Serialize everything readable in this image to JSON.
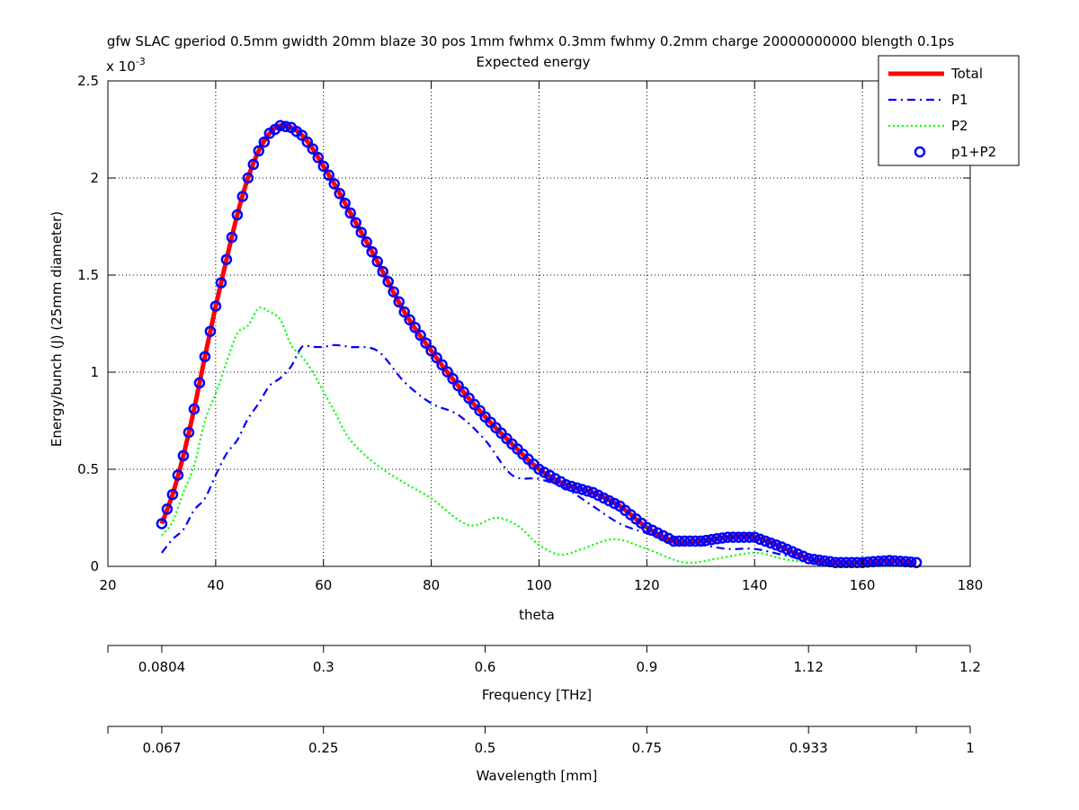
{
  "chart_data": {
    "type": "line",
    "title": "gfw SLAC gperiod 0.5mm gwidth 20mm blaze 30 pos 1mm fwhmx 0.3mm fwhmy 0.2mm charge 20000000000 blength 0.1ps",
    "subtitle": "Expected energy",
    "xlabel": "theta",
    "ylabel": "Energy/bunch (J) (25mm diameter)",
    "y_multiplier_base": "x 10",
    "y_multiplier_exp": "-3",
    "xlim": [
      20,
      180
    ],
    "ylim": [
      0,
      0.0025
    ],
    "x_ticks": [
      20,
      40,
      60,
      80,
      100,
      120,
      140,
      160,
      180
    ],
    "y_ticks": [
      0,
      0.5,
      1,
      1.5,
      2,
      2.5
    ],
    "grid": true,
    "legend_position": "top-right",
    "legend": [
      {
        "label": "Total",
        "color": "#ff0000",
        "style": "solid"
      },
      {
        "label": "P1",
        "color": "#0000ff",
        "style": "dashdot"
      },
      {
        "label": "P2",
        "color": "#00ff00",
        "style": "dotted"
      },
      {
        "label": "p1+P2",
        "color": "#0000ff",
        "style": "circles"
      }
    ],
    "series": [
      {
        "name": "Total",
        "color": "#ff0000",
        "x": [
          30,
          32,
          34,
          36,
          38,
          40,
          42,
          44,
          46,
          48,
          50,
          52,
          54,
          56,
          58,
          60,
          62,
          65,
          70,
          75,
          80,
          85,
          90,
          95,
          100,
          105,
          110,
          115,
          120,
          125,
          130,
          135,
          140,
          145,
          150,
          155,
          160,
          165,
          170
        ],
        "y": [
          0.00022,
          0.00037,
          0.00057,
          0.00081,
          0.00108,
          0.00134,
          0.00158,
          0.00181,
          0.002,
          0.00214,
          0.00223,
          0.00227,
          0.00226,
          0.00222,
          0.00215,
          0.00206,
          0.00197,
          0.00182,
          0.00157,
          0.00131,
          0.00111,
          0.00093,
          0.00077,
          0.00063,
          0.0005,
          0.00042,
          0.00038,
          0.00031,
          0.0002,
          0.00013,
          0.00013,
          0.00015,
          0.00015,
          0.0001,
          4e-05,
          2e-05,
          2e-05,
          3e-05,
          2e-05
        ]
      },
      {
        "name": "P1",
        "color": "#0000ff",
        "x": [
          30,
          32,
          34,
          36,
          38,
          40,
          42,
          44,
          46,
          48,
          50,
          52,
          54,
          56,
          58,
          60,
          62,
          65,
          70,
          75,
          80,
          85,
          90,
          95,
          100,
          105,
          110,
          115,
          120,
          125,
          130,
          135,
          140,
          145,
          150,
          155,
          160,
          165,
          170
        ],
        "y": [
          7e-05,
          0.00014,
          0.00019,
          0.00029,
          0.00035,
          0.00047,
          0.00058,
          0.00065,
          0.00076,
          0.00084,
          0.00093,
          0.00097,
          0.00103,
          0.00113,
          0.00113,
          0.00113,
          0.00114,
          0.00113,
          0.00111,
          0.00095,
          0.00084,
          0.00078,
          0.00065,
          0.00047,
          0.00045,
          0.0004,
          0.00031,
          0.00022,
          0.00017,
          0.00012,
          0.00011,
          9e-05,
          9e-05,
          6e-05,
          3e-05,
          1e-05,
          1e-05,
          1e-05,
          1e-05
        ]
      },
      {
        "name": "P2",
        "color": "#00ff00",
        "x": [
          30,
          32,
          34,
          36,
          38,
          40,
          42,
          44,
          46,
          48,
          50,
          52,
          54,
          56,
          58,
          60,
          62,
          65,
          70,
          75,
          80,
          85,
          88,
          92,
          96,
          100,
          104,
          108,
          114,
          120,
          127,
          133,
          140,
          145,
          150,
          155,
          160,
          165,
          170
        ],
        "y": [
          0.00016,
          0.00023,
          0.00038,
          0.00052,
          0.00075,
          0.00089,
          0.00105,
          0.0012,
          0.00124,
          0.00133,
          0.00131,
          0.00127,
          0.00114,
          0.00108,
          0.001,
          0.0009,
          0.0008,
          0.00065,
          0.00052,
          0.00043,
          0.00035,
          0.00024,
          0.00021,
          0.00025,
          0.00021,
          0.00011,
          6e-05,
          9e-05,
          0.00014,
          9e-05,
          2e-05,
          4e-05,
          7e-05,
          4e-05,
          2e-05,
          1e-05,
          1e-05,
          1e-05,
          1e-05
        ]
      }
    ],
    "marker_series": {
      "name": "p1+P2",
      "color": "#0000ff",
      "marker": "circle",
      "x_start": 30,
      "x_end": 170,
      "x_step": 1
    },
    "secondary_axes": [
      {
        "label": "Frequency [THz]",
        "ticks": [
          {
            "theta": 30,
            "label": "0.0804"
          },
          {
            "theta": 60,
            "label": "0.3"
          },
          {
            "theta": 90,
            "label": "0.6"
          },
          {
            "theta": 120,
            "label": "0.9"
          },
          {
            "theta": 150,
            "label": "1.12"
          },
          {
            "theta": 170,
            "label": "1.2"
          }
        ]
      },
      {
        "label": "Wavelength [mm]",
        "ticks": [
          {
            "theta": 30,
            "label": "0.067"
          },
          {
            "theta": 60,
            "label": "0.25"
          },
          {
            "theta": 90,
            "label": "0.5"
          },
          {
            "theta": 120,
            "label": "0.75"
          },
          {
            "theta": 150,
            "label": "0.933"
          },
          {
            "theta": 170,
            "label": "1"
          }
        ]
      }
    ]
  }
}
